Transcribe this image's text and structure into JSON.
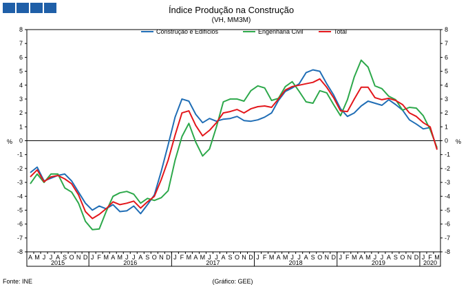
{
  "header": {
    "title": "Índice Produção na Construção",
    "subtitle": "(VH, MM3M)"
  },
  "footer": {
    "source": "Fonte: INE",
    "credit": "(Gráfico: GEE)"
  },
  "colors": {
    "logo": "#1f5fa8"
  },
  "chart_data": {
    "type": "line",
    "ylabel": "%",
    "ylabel_right": "%",
    "ylim": [
      -8,
      8
    ],
    "yticks": [
      8,
      7,
      6,
      5,
      4,
      3,
      2,
      1,
      0,
      -1,
      -2,
      -3,
      -4,
      -5,
      -6,
      -7,
      -8
    ],
    "grid": false,
    "legend": "top-center",
    "month_labels": [
      "A",
      "M",
      "J",
      "J",
      "A",
      "S",
      "O",
      "N",
      "D",
      "J",
      "F",
      "M",
      "A",
      "M",
      "J",
      "J",
      "A",
      "S",
      "O",
      "N",
      "D",
      "J",
      "F",
      "M",
      "A",
      "M",
      "J",
      "J",
      "A",
      "S",
      "O",
      "N",
      "D",
      "J",
      "F",
      "M",
      "A",
      "M",
      "J",
      "J",
      "A",
      "S",
      "O",
      "N",
      "D",
      "J",
      "F",
      "M",
      "A",
      "M",
      "J",
      "J",
      "A",
      "S",
      "O",
      "N",
      "D",
      "J",
      "F",
      "M"
    ],
    "years": [
      {
        "label": "2015",
        "start": 0,
        "end": 8
      },
      {
        "label": "2016",
        "start": 9,
        "end": 20
      },
      {
        "label": "2017",
        "start": 21,
        "end": 32
      },
      {
        "label": "2018",
        "start": 33,
        "end": 44
      },
      {
        "label": "2019",
        "start": 45,
        "end": 56
      },
      {
        "label": "2020",
        "start": 57,
        "end": 59
      }
    ],
    "series": [
      {
        "name": "Construção e Edifícios",
        "color": "#1f6db5",
        "values": [
          -2.3,
          -1.9,
          -2.9,
          -2.7,
          -2.5,
          -2.4,
          -2.9,
          -3.7,
          -4.5,
          -5.0,
          -4.7,
          -4.9,
          -4.6,
          -5.1,
          -5.05,
          -4.7,
          -5.25,
          -4.6,
          -3.9,
          -2.2,
          -0.3,
          1.7,
          3.0,
          2.85,
          1.9,
          1.3,
          1.6,
          1.4,
          1.55,
          1.6,
          1.75,
          1.45,
          1.4,
          1.5,
          1.7,
          2.0,
          2.9,
          3.55,
          3.8,
          4.1,
          4.9,
          5.1,
          5.0,
          4.1,
          3.3,
          2.3,
          1.75,
          2.0,
          2.5,
          2.85,
          2.7,
          2.55,
          2.95,
          2.6,
          2.2,
          1.5,
          1.2,
          0.85,
          0.95,
          -0.6
        ]
      },
      {
        "name": "Engenharia Civil",
        "color": "#2ca84a",
        "values": [
          -3.1,
          -2.4,
          -3.0,
          -2.4,
          -2.4,
          -3.4,
          -3.7,
          -4.5,
          -5.8,
          -6.4,
          -6.35,
          -5.1,
          -4.0,
          -3.75,
          -3.65,
          -3.85,
          -4.5,
          -4.15,
          -4.3,
          -4.1,
          -3.6,
          -1.4,
          0.3,
          1.25,
          -0.1,
          -1.1,
          -0.6,
          1.0,
          2.8,
          3.0,
          3.0,
          2.85,
          3.6,
          3.95,
          3.8,
          2.9,
          3.05,
          3.9,
          4.25,
          3.55,
          2.8,
          2.7,
          3.6,
          3.45,
          2.6,
          1.8,
          2.95,
          4.6,
          5.8,
          5.3,
          3.95,
          3.75,
          3.2,
          2.95,
          2.2,
          2.4,
          2.35,
          1.8,
          0.8,
          -0.5
        ]
      },
      {
        "name": "Total",
        "color": "#e3161b",
        "values": [
          -2.6,
          -2.1,
          -2.95,
          -2.6,
          -2.5,
          -2.75,
          -3.1,
          -3.9,
          -5.1,
          -5.6,
          -5.3,
          -4.9,
          -4.4,
          -4.6,
          -4.5,
          -4.35,
          -4.85,
          -4.4,
          -4.0,
          -2.8,
          -1.4,
          0.4,
          2.0,
          2.15,
          1.1,
          0.35,
          0.75,
          1.3,
          2.0,
          2.1,
          2.25,
          2.0,
          2.3,
          2.45,
          2.5,
          2.4,
          3.0,
          3.65,
          3.9,
          4.0,
          4.1,
          4.2,
          4.45,
          3.85,
          3.1,
          2.15,
          2.1,
          3.0,
          3.85,
          3.85,
          3.1,
          2.95,
          3.05,
          2.9,
          2.6,
          2.0,
          1.75,
          1.3,
          1.0,
          -0.65
        ]
      }
    ]
  }
}
